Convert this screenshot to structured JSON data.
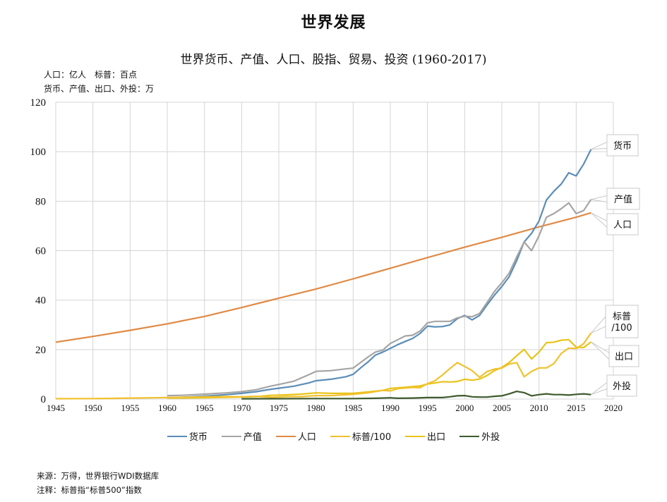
{
  "header": {
    "main_title": "世界发展",
    "chart_title": "世界货币、产值、人口、股指、贸易、投资 (1960-2017)",
    "unit_line1": "人口：亿人　标普：百点",
    "unit_line2": "货币、产值、出口、外投：万"
  },
  "footer": {
    "source": "来源：万得，世界银行WDI数据库",
    "note": "注释：标普指“标普500”指数"
  },
  "chart_data": {
    "type": "line",
    "title": "世界货币、产值、人口、股指、贸易、投资 (1960-2017)",
    "xlabel": "",
    "ylabel": "",
    "xlim": [
      1945,
      2020
    ],
    "ylim": [
      0,
      120
    ],
    "x_ticks": [
      "1945",
      "1950",
      "1955",
      "1960",
      "1965",
      "1970",
      "1975",
      "1980",
      "1985",
      "1990",
      "1995",
      "2000",
      "2005",
      "2010",
      "2015",
      "2020"
    ],
    "y_ticks": [
      "0",
      "20",
      "40",
      "60",
      "80",
      "100",
      "120"
    ],
    "grid": true,
    "legend_position": "bottom",
    "series": [
      {
        "name": "货币",
        "color": "#5b8db8",
        "callout": "货币",
        "points": [
          [
            1960,
            0.5
          ],
          [
            1962,
            0.7
          ],
          [
            1965,
            1.2
          ],
          [
            1968,
            1.8
          ],
          [
            1970,
            2.3
          ],
          [
            1972,
            3.0
          ],
          [
            1974,
            4.0
          ],
          [
            1975,
            4.4
          ],
          [
            1977,
            5.2
          ],
          [
            1979,
            6.5
          ],
          [
            1980,
            7.4
          ],
          [
            1982,
            8.0
          ],
          [
            1984,
            9.0
          ],
          [
            1985,
            10.0
          ],
          [
            1986,
            12.6
          ],
          [
            1987,
            15.0
          ],
          [
            1988,
            17.8
          ],
          [
            1989,
            19.0
          ],
          [
            1990,
            20.5
          ],
          [
            1991,
            22.0
          ],
          [
            1992,
            23.3
          ],
          [
            1993,
            24.5
          ],
          [
            1994,
            26.5
          ],
          [
            1995,
            29.5
          ],
          [
            1996,
            29.2
          ],
          [
            1997,
            29.3
          ],
          [
            1998,
            30.0
          ],
          [
            1999,
            32.5
          ],
          [
            2000,
            33.8
          ],
          [
            2001,
            32.0
          ],
          [
            2002,
            33.8
          ],
          [
            2003,
            38.0
          ],
          [
            2004,
            42.0
          ],
          [
            2005,
            45.5
          ],
          [
            2006,
            49.5
          ],
          [
            2007,
            56.0
          ],
          [
            2008,
            63.5
          ],
          [
            2009,
            67.0
          ],
          [
            2010,
            72.0
          ],
          [
            2011,
            80.5
          ],
          [
            2012,
            84.0
          ],
          [
            2013,
            87.0
          ],
          [
            2014,
            91.5
          ],
          [
            2015,
            90.2
          ],
          [
            2016,
            95.0
          ],
          [
            2017,
            101.0
          ]
        ]
      },
      {
        "name": "产值",
        "color": "#a5a5a5",
        "callout": "产值",
        "points": [
          [
            1960,
            1.4
          ],
          [
            1962,
            1.5
          ],
          [
            1965,
            2.0
          ],
          [
            1968,
            2.5
          ],
          [
            1970,
            3.0
          ],
          [
            1972,
            3.8
          ],
          [
            1974,
            5.3
          ],
          [
            1975,
            5.9
          ],
          [
            1977,
            7.2
          ],
          [
            1979,
            9.8
          ],
          [
            1980,
            11.2
          ],
          [
            1982,
            11.5
          ],
          [
            1984,
            12.2
          ],
          [
            1985,
            12.5
          ],
          [
            1986,
            14.8
          ],
          [
            1987,
            17.0
          ],
          [
            1988,
            19.0
          ],
          [
            1989,
            19.8
          ],
          [
            1990,
            22.5
          ],
          [
            1991,
            24.0
          ],
          [
            1992,
            25.5
          ],
          [
            1993,
            25.8
          ],
          [
            1994,
            27.5
          ],
          [
            1995,
            30.8
          ],
          [
            1996,
            31.4
          ],
          [
            1997,
            31.4
          ],
          [
            1998,
            31.4
          ],
          [
            1999,
            32.8
          ],
          [
            2000,
            33.5
          ],
          [
            2001,
            33.3
          ],
          [
            2002,
            34.6
          ],
          [
            2003,
            39.0
          ],
          [
            2004,
            43.5
          ],
          [
            2005,
            47.0
          ],
          [
            2006,
            51.0
          ],
          [
            2007,
            57.5
          ],
          [
            2008,
            63.5
          ],
          [
            2009,
            60.0
          ],
          [
            2010,
            66.0
          ],
          [
            2011,
            73.5
          ],
          [
            2012,
            75.0
          ],
          [
            2013,
            77.0
          ],
          [
            2014,
            79.3
          ],
          [
            2015,
            75.0
          ],
          [
            2016,
            76.2
          ],
          [
            2017,
            80.7
          ]
        ]
      },
      {
        "name": "人口",
        "color": "#e08a45",
        "callout": "人口",
        "points": [
          [
            1945,
            23.0
          ],
          [
            1950,
            25.3
          ],
          [
            1955,
            27.8
          ],
          [
            1960,
            30.4
          ],
          [
            1965,
            33.4
          ],
          [
            1970,
            37.0
          ],
          [
            1975,
            40.8
          ],
          [
            1980,
            44.5
          ],
          [
            1985,
            48.6
          ],
          [
            1990,
            52.9
          ],
          [
            1995,
            57.2
          ],
          [
            2000,
            61.4
          ],
          [
            2005,
            65.4
          ],
          [
            2010,
            69.6
          ],
          [
            2015,
            73.5
          ],
          [
            2017,
            75.3
          ]
        ]
      },
      {
        "name": "标普/100",
        "color": "#f2c12e",
        "callout": "标普\n/100",
        "points": [
          [
            1945,
            0.15
          ],
          [
            1950,
            0.2
          ],
          [
            1952,
            0.25
          ],
          [
            1955,
            0.4
          ],
          [
            1958,
            0.5
          ],
          [
            1960,
            0.6
          ],
          [
            1965,
            0.9
          ],
          [
            1968,
            1.0
          ],
          [
            1970,
            0.9
          ],
          [
            1972,
            1.1
          ],
          [
            1974,
            0.7
          ],
          [
            1976,
            1.0
          ],
          [
            1978,
            1.0
          ],
          [
            1980,
            1.4
          ],
          [
            1982,
            1.4
          ],
          [
            1985,
            1.9
          ],
          [
            1987,
            2.5
          ],
          [
            1989,
            3.5
          ],
          [
            1990,
            3.3
          ],
          [
            1991,
            4.2
          ],
          [
            1993,
            4.7
          ],
          [
            1994,
            4.6
          ],
          [
            1995,
            6.2
          ],
          [
            1996,
            7.4
          ],
          [
            1997,
            9.7
          ],
          [
            1998,
            12.3
          ],
          [
            1999,
            14.7
          ],
          [
            2000,
            13.2
          ],
          [
            2001,
            11.5
          ],
          [
            2002,
            8.8
          ],
          [
            2003,
            11.1
          ],
          [
            2004,
            12.1
          ],
          [
            2005,
            12.5
          ],
          [
            2006,
            14.2
          ],
          [
            2007,
            14.7
          ],
          [
            2008,
            9.0
          ],
          [
            2009,
            11.2
          ],
          [
            2010,
            12.6
          ],
          [
            2011,
            12.6
          ],
          [
            2012,
            14.3
          ],
          [
            2013,
            18.5
          ],
          [
            2014,
            20.6
          ],
          [
            2015,
            20.4
          ],
          [
            2016,
            22.4
          ],
          [
            2017,
            26.7
          ]
        ]
      },
      {
        "name": "出口",
        "color": "#e8c41a",
        "callout": "出口",
        "points": [
          [
            1960,
            0.4
          ],
          [
            1965,
            0.5
          ],
          [
            1970,
            0.8
          ],
          [
            1972,
            1.0
          ],
          [
            1974,
            1.5
          ],
          [
            1976,
            1.7
          ],
          [
            1978,
            2.0
          ],
          [
            1980,
            2.5
          ],
          [
            1982,
            2.3
          ],
          [
            1985,
            2.3
          ],
          [
            1987,
            2.9
          ],
          [
            1989,
            3.5
          ],
          [
            1990,
            4.3
          ],
          [
            1992,
            4.8
          ],
          [
            1994,
            5.3
          ],
          [
            1995,
            6.1
          ],
          [
            1996,
            6.5
          ],
          [
            1997,
            7.0
          ],
          [
            1998,
            6.9
          ],
          [
            1999,
            7.1
          ],
          [
            2000,
            8.0
          ],
          [
            2001,
            7.6
          ],
          [
            2002,
            8.1
          ],
          [
            2003,
            9.5
          ],
          [
            2004,
            11.5
          ],
          [
            2005,
            12.8
          ],
          [
            2006,
            14.8
          ],
          [
            2007,
            17.5
          ],
          [
            2008,
            20.1
          ],
          [
            2009,
            16.2
          ],
          [
            2010,
            19.0
          ],
          [
            2011,
            22.8
          ],
          [
            2012,
            23.0
          ],
          [
            2013,
            23.8
          ],
          [
            2014,
            24.0
          ],
          [
            2015,
            21.0
          ],
          [
            2016,
            20.8
          ],
          [
            2017,
            23.1
          ]
        ]
      },
      {
        "name": "外投",
        "color": "#3e5a2e",
        "callout": "外投",
        "points": [
          [
            1970,
            0.1
          ],
          [
            1975,
            0.15
          ],
          [
            1980,
            0.2
          ],
          [
            1985,
            0.2
          ],
          [
            1988,
            0.3
          ],
          [
            1990,
            0.5
          ],
          [
            1991,
            0.3
          ],
          [
            1993,
            0.4
          ],
          [
            1995,
            0.6
          ],
          [
            1997,
            0.6
          ],
          [
            1998,
            0.9
          ],
          [
            1999,
            1.3
          ],
          [
            2000,
            1.4
          ],
          [
            2001,
            0.9
          ],
          [
            2002,
            0.8
          ],
          [
            2003,
            0.8
          ],
          [
            2004,
            1.1
          ],
          [
            2005,
            1.3
          ],
          [
            2006,
            2.1
          ],
          [
            2007,
            3.1
          ],
          [
            2008,
            2.6
          ],
          [
            2009,
            1.3
          ],
          [
            2010,
            1.8
          ],
          [
            2011,
            2.1
          ],
          [
            2012,
            1.8
          ],
          [
            2013,
            1.8
          ],
          [
            2014,
            1.6
          ],
          [
            2015,
            1.9
          ],
          [
            2016,
            2.1
          ],
          [
            2017,
            1.8
          ]
        ]
      }
    ]
  }
}
